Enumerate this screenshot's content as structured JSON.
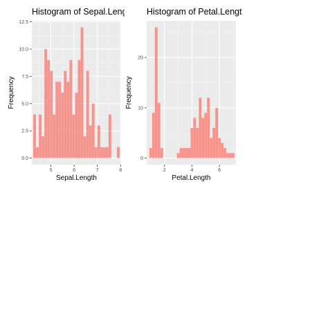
{
  "chart_data": [
    {
      "type": "bar",
      "title": "Histogram of Sepal.Length",
      "xlabel": "Sepal.Length",
      "ylabel": "Frequency",
      "xlim": [
        4.18,
        8.02
      ],
      "ylim": [
        -0.6,
        12.6
      ],
      "x_ticks": [
        5,
        6,
        7,
        8
      ],
      "x_tick_labels": [
        "5",
        "6",
        "7",
        "8"
      ],
      "y_ticks": [
        0,
        2.5,
        5,
        7.5,
        10,
        12.5
      ],
      "y_tick_labels": [
        "0.0",
        "2.5",
        "5.0",
        "7.5",
        "10.0",
        "12.5"
      ],
      "bar_color": "#F8766D",
      "bin_width": 0.12,
      "bins": [
        {
          "x": 4.3,
          "count": 4
        },
        {
          "x": 4.42,
          "count": 1
        },
        {
          "x": 4.54,
          "count": 4
        },
        {
          "x": 4.66,
          "count": 2
        },
        {
          "x": 4.78,
          "count": 10
        },
        {
          "x": 4.9,
          "count": 9
        },
        {
          "x": 5.02,
          "count": 8
        },
        {
          "x": 5.14,
          "count": 4
        },
        {
          "x": 5.26,
          "count": 7
        },
        {
          "x": 5.38,
          "count": 7
        },
        {
          "x": 5.5,
          "count": 6
        },
        {
          "x": 5.62,
          "count": 8
        },
        {
          "x": 5.74,
          "count": 7
        },
        {
          "x": 5.86,
          "count": 9
        },
        {
          "x": 5.98,
          "count": 4
        },
        {
          "x": 6.1,
          "count": 6
        },
        {
          "x": 6.22,
          "count": 9
        },
        {
          "x": 6.34,
          "count": 12
        },
        {
          "x": 6.46,
          "count": 2
        },
        {
          "x": 6.58,
          "count": 8
        },
        {
          "x": 6.7,
          "count": 3
        },
        {
          "x": 6.82,
          "count": 5
        },
        {
          "x": 6.94,
          "count": 1
        },
        {
          "x": 7.06,
          "count": 3
        },
        {
          "x": 7.18,
          "count": 1
        },
        {
          "x": 7.3,
          "count": 1
        },
        {
          "x": 7.42,
          "count": 1
        },
        {
          "x": 7.54,
          "count": 4
        },
        {
          "x": 7.66,
          "count": 0
        },
        {
          "x": 7.78,
          "count": 0
        },
        {
          "x": 7.9,
          "count": 1
        }
      ]
    },
    {
      "type": "bar",
      "title": "Histogram of Petal.Length",
      "xlabel": "Petal.Length",
      "ylabel": "Frequency",
      "xlim": [
        0.7,
        7.2
      ],
      "ylim": [
        -1.3,
        27.3
      ],
      "x_ticks": [
        2,
        4,
        6
      ],
      "x_tick_labels": [
        "2",
        "4",
        "6"
      ],
      "y_ticks": [
        0,
        10,
        20
      ],
      "y_tick_labels": [
        "0",
        "10",
        "20"
      ],
      "bar_color": "#F8766D",
      "bin_width": 0.2,
      "bins": [
        {
          "x": 1.0,
          "count": 2
        },
        {
          "x": 1.2,
          "count": 9
        },
        {
          "x": 1.4,
          "count": 26
        },
        {
          "x": 1.6,
          "count": 11
        },
        {
          "x": 1.8,
          "count": 2
        },
        {
          "x": 3.0,
          "count": 1
        },
        {
          "x": 3.2,
          "count": 2
        },
        {
          "x": 3.4,
          "count": 2
        },
        {
          "x": 3.6,
          "count": 2
        },
        {
          "x": 3.8,
          "count": 2
        },
        {
          "x": 4.0,
          "count": 6
        },
        {
          "x": 4.2,
          "count": 8
        },
        {
          "x": 4.4,
          "count": 6
        },
        {
          "x": 4.6,
          "count": 12
        },
        {
          "x": 4.8,
          "count": 8
        },
        {
          "x": 5.0,
          "count": 9
        },
        {
          "x": 5.2,
          "count": 12
        },
        {
          "x": 5.4,
          "count": 4
        },
        {
          "x": 5.6,
          "count": 6
        },
        {
          "x": 5.8,
          "count": 10
        },
        {
          "x": 6.0,
          "count": 4
        },
        {
          "x": 6.2,
          "count": 3
        },
        {
          "x": 6.4,
          "count": 2
        },
        {
          "x": 6.6,
          "count": 1
        },
        {
          "x": 6.8,
          "count": 1
        },
        {
          "x": 7.0,
          "count": 1
        }
      ]
    }
  ]
}
